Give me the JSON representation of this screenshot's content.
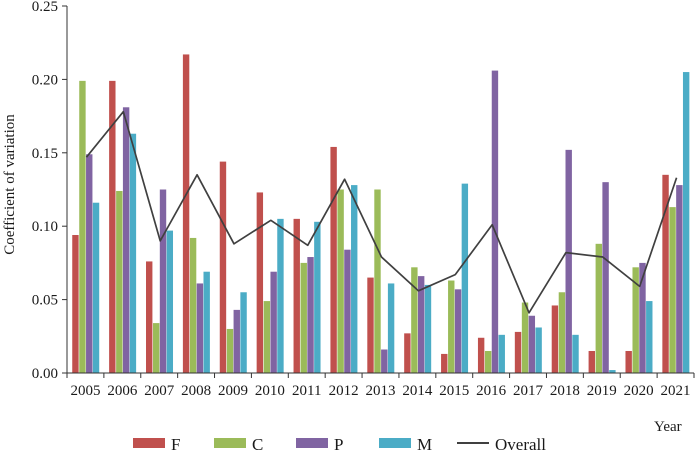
{
  "chart_data": {
    "type": "bar",
    "title": "",
    "xlabel": "Year",
    "ylabel": "Coefficient of variation",
    "ylim": [
      0,
      0.25
    ],
    "yticks": [
      "0.00",
      "0.05",
      "0.10",
      "0.15",
      "0.20",
      "0.25"
    ],
    "ytick_values": [
      0,
      0.05,
      0.1,
      0.15,
      0.2,
      0.25
    ],
    "categories": [
      "2005",
      "2006",
      "2007",
      "2008",
      "2009",
      "2010",
      "2011",
      "2012",
      "2013",
      "2014",
      "2015",
      "2016",
      "2017",
      "2018",
      "2019",
      "2020",
      "2021"
    ],
    "series": [
      {
        "name": "F",
        "kind": "bar",
        "color": "#c0504d",
        "values": [
          0.094,
          0.199,
          0.076,
          0.217,
          0.144,
          0.123,
          0.105,
          0.154,
          0.065,
          0.027,
          0.013,
          0.024,
          0.028,
          0.046,
          0.015,
          0.015,
          0.135
        ]
      },
      {
        "name": "C",
        "kind": "bar",
        "color": "#9bbb59",
        "values": [
          0.199,
          0.124,
          0.034,
          0.092,
          0.03,
          0.049,
          0.075,
          0.125,
          0.125,
          0.072,
          0.063,
          0.015,
          0.048,
          0.055,
          0.088,
          0.072,
          0.113
        ]
      },
      {
        "name": "P",
        "kind": "bar",
        "color": "#8064a2",
        "values": [
          0.149,
          0.181,
          0.125,
          0.061,
          0.043,
          0.069,
          0.079,
          0.084,
          0.016,
          0.066,
          0.057,
          0.206,
          0.039,
          0.152,
          0.13,
          0.075,
          0.128
        ]
      },
      {
        "name": "M",
        "kind": "bar",
        "color": "#4bacc6",
        "values": [
          0.116,
          0.163,
          0.097,
          0.069,
          0.055,
          0.105,
          0.103,
          0.128,
          0.061,
          0.06,
          0.129,
          0.026,
          0.031,
          0.026,
          0.002,
          0.049,
          0.205
        ]
      },
      {
        "name": "Overall",
        "kind": "line",
        "color": "#404040",
        "values": [
          0.147,
          0.178,
          0.09,
          0.135,
          0.088,
          0.104,
          0.087,
          0.132,
          0.079,
          0.056,
          0.067,
          0.101,
          0.041,
          0.082,
          0.079,
          0.059,
          0.133
        ]
      }
    ],
    "legend_position": "bottom",
    "grid": false,
    "axis_color": "#333333"
  }
}
